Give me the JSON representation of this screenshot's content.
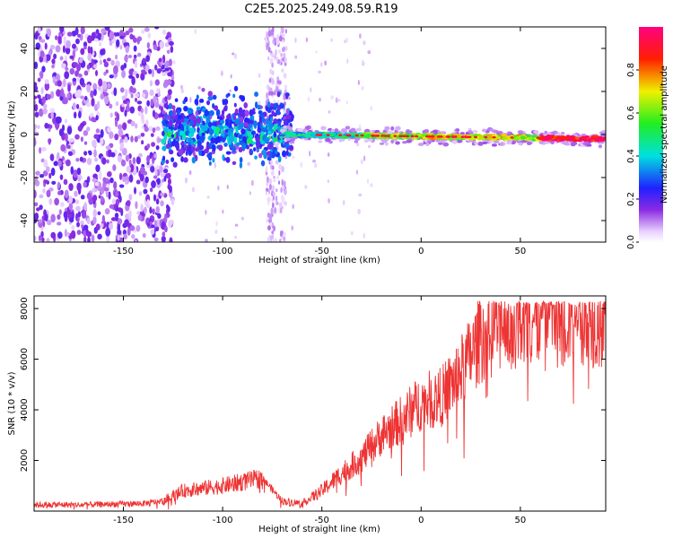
{
  "title": "C2E5.2025.249.08.59.R19",
  "chart_data": [
    {
      "type": "heatmap",
      "name": "spectrogram",
      "xlabel": "Height of straight line (km)",
      "ylabel": "Frequency (Hz)",
      "xlim": [
        -195,
        93
      ],
      "ylim": [
        -50,
        50
      ],
      "xticks": [
        -150,
        -100,
        -50,
        0,
        50
      ],
      "xtick_labels": [
        "-150",
        "-100",
        "-50",
        "0",
        "50"
      ],
      "yticks": [
        -40,
        -20,
        0,
        20,
        40
      ],
      "ytick_labels": [
        "-40",
        "-20",
        "0",
        "20",
        "40"
      ],
      "colorbar": {
        "label": "Normalized spectral amplitude",
        "range": [
          0,
          1
        ],
        "ticks": [
          0.0,
          0.2,
          0.4,
          0.6,
          0.8
        ],
        "tick_labels": [
          "0.0",
          "0.2",
          "0.4",
          "0.6",
          "0.8"
        ]
      },
      "description_series": [
        {
          "name": "noise",
          "x_range": [
            -195,
            -125
          ],
          "freq_spread": 50,
          "amplitude": 0.15
        },
        {
          "name": "transition",
          "x_range": [
            -125,
            -70
          ],
          "freq_spread": 12,
          "amplitude": 0.25
        },
        {
          "name": "vertical-band",
          "x_range": [
            -78,
            -68
          ],
          "freq_spread": 50,
          "amplitude": 0.05
        },
        {
          "name": "signal",
          "x_range": [
            -70,
            93
          ],
          "center_freq_start": 0,
          "center_freq_end": -2,
          "amplitude": 0.95
        }
      ]
    },
    {
      "type": "line",
      "name": "snr",
      "xlabel": "Height of straight line (km)",
      "ylabel": "SNR (10 * v/v)",
      "xlim": [
        -195,
        93
      ],
      "ylim": [
        0,
        8500
      ],
      "xticks": [
        -150,
        -100,
        -50,
        0,
        50
      ],
      "xtick_labels": [
        "-150",
        "-100",
        "-50",
        "0",
        "50"
      ],
      "yticks": [
        2000,
        4000,
        6000,
        8000
      ],
      "ytick_labels": [
        "2000",
        "4000",
        "6000",
        "8000"
      ],
      "color": "#ee3333",
      "x": [
        -195,
        -170,
        -140,
        -130,
        -120,
        -100,
        -90,
        -80,
        -70,
        -60,
        -50,
        -40,
        -30,
        -20,
        -10,
        0,
        10,
        20,
        30,
        40,
        50,
        60,
        70,
        80,
        93
      ],
      "y": [
        250,
        250,
        300,
        400,
        800,
        1000,
        1150,
        1300,
        400,
        300,
        800,
        1500,
        2100,
        3000,
        3600,
        4300,
        4500,
        5500,
        6800,
        7400,
        7500,
        7700,
        7600,
        7800,
        7300
      ]
    }
  ]
}
